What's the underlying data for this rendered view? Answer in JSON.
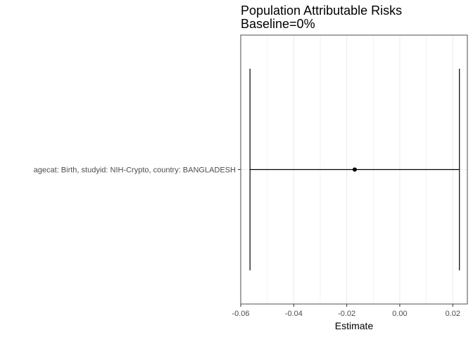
{
  "chart_data": {
    "type": "forest",
    "title": "Population Attributable Risks",
    "subtitle": "Baseline=0%",
    "xlabel": "Estimate",
    "ylabel": "",
    "xlim": [
      -0.06,
      0.0255
    ],
    "x_ticks": [
      -0.06,
      -0.04,
      -0.02,
      0.0,
      0.02
    ],
    "x_tick_labels": [
      "-0.06",
      "-0.04",
      "-0.02",
      "0.00",
      "0.02"
    ],
    "grid": true,
    "categories": [
      "agecat: Birth, studyid: NIH-Crypto, country: BANGLADESH"
    ],
    "points": [
      {
        "category": "agecat: Birth, studyid: NIH-Crypto, country: BANGLADESH",
        "estimate": -0.017,
        "ci_lower": -0.0565,
        "ci_upper": 0.0225
      }
    ]
  },
  "colors": {
    "point": "#000000",
    "errorbar": "#000000",
    "grid": "#ebebeb",
    "panel_border": "#4d4d4d",
    "tick_text": "#4d4d4d"
  }
}
